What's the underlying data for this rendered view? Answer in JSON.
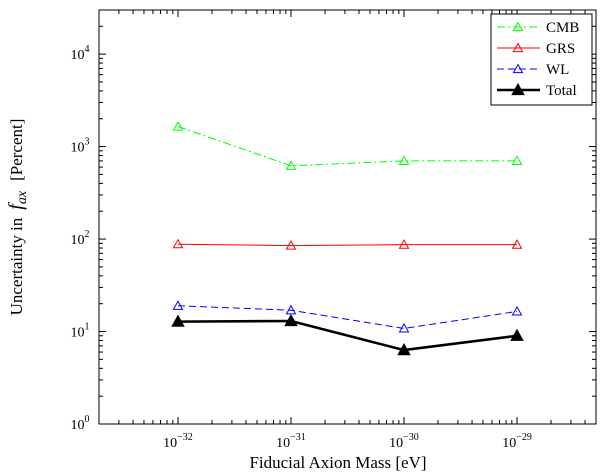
{
  "chart_data": {
    "type": "line",
    "xlabel": "Fiducial Axion Mass [eV]",
    "ylabel": "Uncertainty in",
    "ylabel_symbol": "f",
    "ylabel_subscript": "ax",
    "ylabel_unit": "[Percent]",
    "x_scale": "log",
    "y_scale": "log",
    "x": [
      1e-32,
      1e-31,
      1e-30,
      1e-29
    ],
    "xlim": [
      2e-33,
      5e-29
    ],
    "ylim": [
      1,
      30000
    ],
    "x_tick_labels": [
      {
        "base": "10",
        "exp": "−32"
      },
      {
        "base": "10",
        "exp": "−31"
      },
      {
        "base": "10",
        "exp": "−30"
      },
      {
        "base": "10",
        "exp": "−29"
      }
    ],
    "y_tick_labels": [
      {
        "base": "10",
        "exp": "0",
        "value": 1
      },
      {
        "base": "10",
        "exp": "1",
        "value": 10
      },
      {
        "base": "10",
        "exp": "2",
        "value": 100
      },
      {
        "base": "10",
        "exp": "3",
        "value": 1000
      },
      {
        "base": "10",
        "exp": "4",
        "value": 10000
      }
    ],
    "grid": false,
    "legend_position": "top-right",
    "series": [
      {
        "name": "CMB",
        "color": "#00ff00",
        "dash": "dash-dot",
        "marker": "open-triangle",
        "values": [
          1650,
          620,
          700,
          700
        ]
      },
      {
        "name": "GRS",
        "color": "#ff0000",
        "dash": "solid",
        "marker": "open-triangle",
        "values": [
          88,
          85,
          87,
          87
        ]
      },
      {
        "name": "WL",
        "color": "#0000ff",
        "dash": "dashed",
        "marker": "open-triangle",
        "values": [
          19,
          17,
          10.8,
          16.5
        ]
      },
      {
        "name": "Total",
        "color": "#000000",
        "dash": "solid-thick",
        "marker": "filled-triangle",
        "values": [
          12.8,
          13,
          6.3,
          9
        ]
      }
    ]
  }
}
